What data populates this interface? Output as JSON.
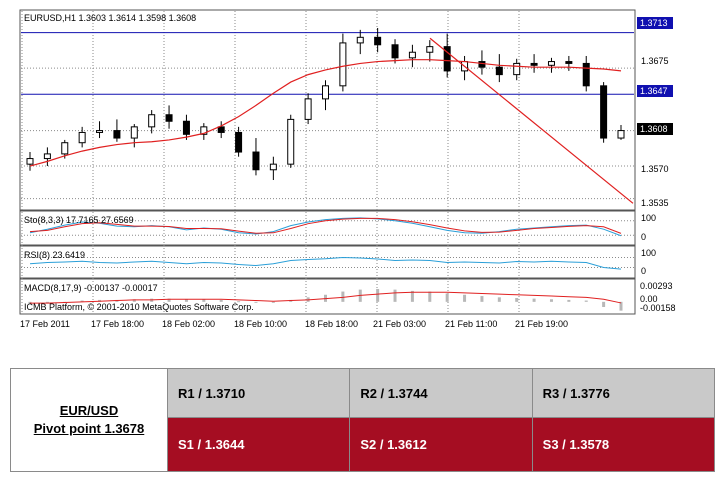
{
  "chart_data": [
    {
      "type": "candlestick",
      "title": "EURUSD,H1  1.3603 1.3614 1.3598 1.3608",
      "price_labels": [
        "1.3675",
        "1.3570",
        "1.3535"
      ],
      "ylim": [
        1.3525,
        1.3733
      ],
      "horizontal_lines": [
        {
          "label": "1.3713",
          "value": 1.3713
        },
        {
          "label": "1.3647",
          "value": 1.3647
        }
      ],
      "current_price_label": "1.3608",
      "current_price": 1.3608,
      "moving_average": [
        1.357,
        1.3575,
        1.3581,
        1.3586,
        1.359,
        1.3593,
        1.3595,
        1.3596,
        1.3598,
        1.3601,
        1.3605,
        1.3613,
        1.3623,
        1.3635,
        1.3648,
        1.366,
        1.3668,
        1.3673,
        1.3677,
        1.368,
        1.3682,
        1.3683,
        1.3684,
        1.3684,
        1.3683,
        1.3682,
        1.368,
        1.3678,
        1.3677,
        1.3676,
        1.3676,
        1.3676,
        1.3675,
        1.3674,
        1.3672
      ],
      "trend_line": {
        "from": 1.3707,
        "to": 1.353
      },
      "candles_ohlc": [
        [
          1.3572,
          1.3585,
          1.3565,
          1.3578
        ],
        [
          1.3578,
          1.359,
          1.357,
          1.3583
        ],
        [
          1.3583,
          1.3598,
          1.3578,
          1.3595
        ],
        [
          1.3595,
          1.3612,
          1.359,
          1.3606
        ],
        [
          1.3606,
          1.3618,
          1.36,
          1.3608
        ],
        [
          1.3608,
          1.362,
          1.3596,
          1.36
        ],
        [
          1.36,
          1.3615,
          1.359,
          1.3612
        ],
        [
          1.3612,
          1.363,
          1.3605,
          1.3625
        ],
        [
          1.3625,
          1.3635,
          1.361,
          1.3618
        ],
        [
          1.3618,
          1.3625,
          1.3598,
          1.3604
        ],
        [
          1.3604,
          1.3616,
          1.3598,
          1.3612
        ],
        [
          1.3612,
          1.3618,
          1.36,
          1.3606
        ],
        [
          1.3606,
          1.3612,
          1.358,
          1.3585
        ],
        [
          1.3585,
          1.36,
          1.356,
          1.3566
        ],
        [
          1.3566,
          1.358,
          1.3555,
          1.3572
        ],
        [
          1.3572,
          1.3625,
          1.3568,
          1.362
        ],
        [
          1.362,
          1.3648,
          1.3615,
          1.3642
        ],
        [
          1.3642,
          1.3662,
          1.363,
          1.3656
        ],
        [
          1.3656,
          1.3712,
          1.365,
          1.3702
        ],
        [
          1.3702,
          1.3716,
          1.369,
          1.3708
        ],
        [
          1.3708,
          1.3718,
          1.3692,
          1.37
        ],
        [
          1.37,
          1.3706,
          1.368,
          1.3686
        ],
        [
          1.3686,
          1.37,
          1.3676,
          1.3692
        ],
        [
          1.3692,
          1.3705,
          1.3682,
          1.3698
        ],
        [
          1.3698,
          1.3712,
          1.3665,
          1.3672
        ],
        [
          1.3672,
          1.3688,
          1.3662,
          1.3682
        ],
        [
          1.3682,
          1.3694,
          1.3668,
          1.3676
        ],
        [
          1.3676,
          1.369,
          1.366,
          1.3668
        ],
        [
          1.3668,
          1.3685,
          1.3662,
          1.368
        ],
        [
          1.368,
          1.369,
          1.367,
          1.3678
        ],
        [
          1.3678,
          1.3686,
          1.367,
          1.3682
        ],
        [
          1.3682,
          1.3688,
          1.3672,
          1.368
        ],
        [
          1.368,
          1.3688,
          1.365,
          1.3656
        ],
        [
          1.3656,
          1.366,
          1.3595,
          1.36
        ],
        [
          1.36,
          1.3614,
          1.3598,
          1.3608
        ]
      ]
    },
    {
      "type": "line",
      "label": "Sto(8,3,3) 17.7165 27.6569",
      "tick_labels": [
        "100",
        "0"
      ],
      "ylim": [
        0,
        100
      ],
      "series": [
        {
          "values": [
            30,
            45,
            62,
            75,
            70,
            58,
            55,
            60,
            55,
            42,
            50,
            45,
            30,
            25,
            35,
            60,
            75,
            85,
            90,
            92,
            88,
            80,
            70,
            55,
            40,
            30,
            28,
            35,
            45,
            50,
            55,
            60,
            62,
            45,
            17.7
          ]
        },
        {
          "values": [
            35,
            40,
            55,
            68,
            72,
            65,
            58,
            58,
            56,
            48,
            48,
            47,
            37,
            28,
            30,
            48,
            68,
            80,
            87,
            90,
            90,
            85,
            76,
            64,
            50,
            38,
            32,
            33,
            40,
            48,
            52,
            57,
            60,
            55,
            27.7
          ]
        }
      ]
    },
    {
      "type": "line",
      "label": "RSI(8) 23.6419",
      "tick_labels": [
        "100",
        "0"
      ],
      "ylim": [
        0,
        100
      ],
      "series": [
        {
          "values": [
            45,
            50,
            52,
            55,
            50,
            48,
            52,
            55,
            50,
            45,
            50,
            48,
            42,
            38,
            45,
            58,
            62,
            65,
            70,
            68,
            64,
            58,
            60,
            58,
            50,
            52,
            50,
            48,
            54,
            52,
            55,
            52,
            50,
            30,
            23.6
          ]
        }
      ]
    },
    {
      "type": "bar",
      "label": "MACD(8,17,9) -0.00137 -0.00017",
      "tick_labels": [
        "0.00293",
        "0.00",
        "-0.00158"
      ],
      "ylim": [
        -0.00158,
        0.00293
      ],
      "values": [
        -0.0003,
        -0.0002,
        0.0,
        0.0002,
        0.0003,
        0.0003,
        0.0004,
        0.0005,
        0.0005,
        0.0004,
        0.0004,
        0.0003,
        0.0001,
        -0.0001,
        -0.0001,
        0.0003,
        0.0007,
        0.0011,
        0.0016,
        0.0019,
        0.002,
        0.0019,
        0.0017,
        0.0016,
        0.0013,
        0.0011,
        0.0009,
        0.0007,
        0.0006,
        0.0005,
        0.0004,
        0.0003,
        0.0002,
        -0.0008,
        -0.00137
      ],
      "signal": [
        -0.0002,
        -0.0002,
        -0.0001,
        0.0,
        0.0001,
        0.0002,
        0.0003,
        0.0003,
        0.0004,
        0.0004,
        0.0004,
        0.0004,
        0.0003,
        0.0002,
        0.0001,
        0.0002,
        0.0003,
        0.0005,
        0.0007,
        0.001,
        0.0012,
        0.0014,
        0.0015,
        0.0015,
        0.0015,
        0.0014,
        0.0013,
        0.0012,
        0.0011,
        0.001,
        0.0009,
        0.0008,
        0.0007,
        0.0004,
        -0.00017
      ]
    }
  ],
  "copyright": "ICMB Platform, © 2001-2010 MetaQuotes Software Corp.",
  "time_labels": [
    "17 Feb 2011",
    "17 Feb 18:00",
    "18 Feb 02:00",
    "18 Feb 10:00",
    "18 Feb 18:00",
    "21 Feb 03:00",
    "21 Feb 11:00",
    "21 Feb 19:00"
  ],
  "pivot": {
    "pair": "EUR/USD",
    "pivot_point": "Pivot point 1.3678",
    "resistance": [
      "R1 / 1.3710",
      "R2 / 1.3744",
      "R3 / 1.3776"
    ],
    "support": [
      "S1 / 1.3644",
      "S2 / 1.3612",
      "S3 / 1.3578"
    ]
  },
  "colors": {
    "grid": "#8a8a8a",
    "line_blue": "#1010b0",
    "ma_red": "#e02020",
    "candle_black": "#000000",
    "stoch_blue": "#2a9fd8",
    "macd_bar": "#b8b8b8",
    "resistance_bg": "#c9c9c9",
    "support_bg": "#a50d22"
  }
}
